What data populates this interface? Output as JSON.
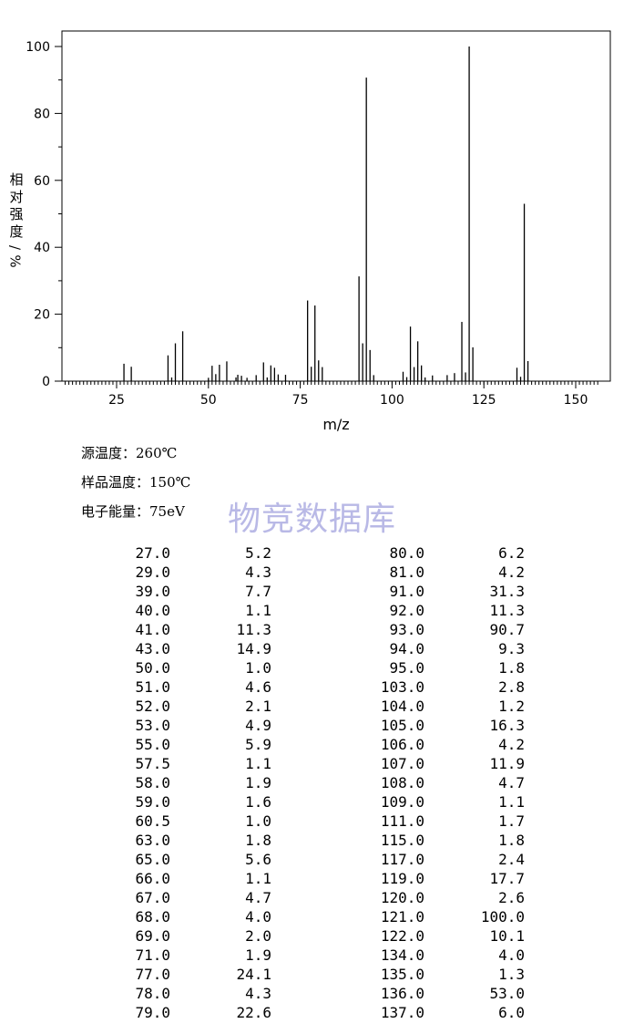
{
  "chart_data": {
    "type": "bar",
    "xlabel": "m/z",
    "ylabel": "相对强度/%",
    "xlim": [
      10,
      158
    ],
    "ylim": [
      0,
      105
    ],
    "x_ticks": [
      25,
      50,
      75,
      100,
      125,
      150
    ],
    "y_ticks": [
      0,
      20,
      40,
      60,
      80,
      100
    ],
    "grid": false,
    "peaks": [
      {
        "mz": 27.0,
        "intensity": 5.2
      },
      {
        "mz": 29.0,
        "intensity": 4.3
      },
      {
        "mz": 39.0,
        "intensity": 7.7
      },
      {
        "mz": 40.0,
        "intensity": 1.1
      },
      {
        "mz": 41.0,
        "intensity": 11.3
      },
      {
        "mz": 43.0,
        "intensity": 14.9
      },
      {
        "mz": 50.0,
        "intensity": 1.0
      },
      {
        "mz": 51.0,
        "intensity": 4.6
      },
      {
        "mz": 52.0,
        "intensity": 2.1
      },
      {
        "mz": 53.0,
        "intensity": 4.9
      },
      {
        "mz": 55.0,
        "intensity": 5.9
      },
      {
        "mz": 57.5,
        "intensity": 1.1
      },
      {
        "mz": 58.0,
        "intensity": 1.9
      },
      {
        "mz": 59.0,
        "intensity": 1.6
      },
      {
        "mz": 60.5,
        "intensity": 1.0
      },
      {
        "mz": 63.0,
        "intensity": 1.8
      },
      {
        "mz": 65.0,
        "intensity": 5.6
      },
      {
        "mz": 66.0,
        "intensity": 1.1
      },
      {
        "mz": 67.0,
        "intensity": 4.7
      },
      {
        "mz": 68.0,
        "intensity": 4.0
      },
      {
        "mz": 69.0,
        "intensity": 2.0
      },
      {
        "mz": 71.0,
        "intensity": 1.9
      },
      {
        "mz": 77.0,
        "intensity": 24.1
      },
      {
        "mz": 78.0,
        "intensity": 4.3
      },
      {
        "mz": 79.0,
        "intensity": 22.6
      },
      {
        "mz": 80.0,
        "intensity": 6.2
      },
      {
        "mz": 81.0,
        "intensity": 4.2
      },
      {
        "mz": 91.0,
        "intensity": 31.3
      },
      {
        "mz": 92.0,
        "intensity": 11.3
      },
      {
        "mz": 93.0,
        "intensity": 90.7
      },
      {
        "mz": 94.0,
        "intensity": 9.3
      },
      {
        "mz": 95.0,
        "intensity": 1.8
      },
      {
        "mz": 103.0,
        "intensity": 2.8
      },
      {
        "mz": 104.0,
        "intensity": 1.2
      },
      {
        "mz": 105.0,
        "intensity": 16.3
      },
      {
        "mz": 106.0,
        "intensity": 4.2
      },
      {
        "mz": 107.0,
        "intensity": 11.9
      },
      {
        "mz": 108.0,
        "intensity": 4.7
      },
      {
        "mz": 109.0,
        "intensity": 1.1
      },
      {
        "mz": 111.0,
        "intensity": 1.7
      },
      {
        "mz": 115.0,
        "intensity": 1.8
      },
      {
        "mz": 117.0,
        "intensity": 2.4
      },
      {
        "mz": 119.0,
        "intensity": 17.7
      },
      {
        "mz": 120.0,
        "intensity": 2.6
      },
      {
        "mz": 121.0,
        "intensity": 100.0
      },
      {
        "mz": 122.0,
        "intensity": 10.1
      },
      {
        "mz": 134.0,
        "intensity": 4.0
      },
      {
        "mz": 135.0,
        "intensity": 1.3
      },
      {
        "mz": 136.0,
        "intensity": 53.0
      },
      {
        "mz": 137.0,
        "intensity": 6.0
      }
    ]
  },
  "conditions": [
    {
      "label": "源温度：",
      "value": "260℃"
    },
    {
      "label": "样品温度：",
      "value": "150℃"
    },
    {
      "label": "电子能量：",
      "value": "75eV"
    }
  ],
  "watermark": "物竞数据库",
  "table": {
    "left": [
      [
        "27.0",
        "5.2"
      ],
      [
        "29.0",
        "4.3"
      ],
      [
        "39.0",
        "7.7"
      ],
      [
        "40.0",
        "1.1"
      ],
      [
        "41.0",
        "11.3"
      ],
      [
        "43.0",
        "14.9"
      ],
      [
        "50.0",
        "1.0"
      ],
      [
        "51.0",
        "4.6"
      ],
      [
        "52.0",
        "2.1"
      ],
      [
        "53.0",
        "4.9"
      ],
      [
        "55.0",
        "5.9"
      ],
      [
        "57.5",
        "1.1"
      ],
      [
        "58.0",
        "1.9"
      ],
      [
        "59.0",
        "1.6"
      ],
      [
        "60.5",
        "1.0"
      ],
      [
        "63.0",
        "1.8"
      ],
      [
        "65.0",
        "5.6"
      ],
      [
        "66.0",
        "1.1"
      ],
      [
        "67.0",
        "4.7"
      ],
      [
        "68.0",
        "4.0"
      ],
      [
        "69.0",
        "2.0"
      ],
      [
        "71.0",
        "1.9"
      ],
      [
        "77.0",
        "24.1"
      ],
      [
        "78.0",
        "4.3"
      ],
      [
        "79.0",
        "22.6"
      ]
    ],
    "right": [
      [
        "80.0",
        "6.2"
      ],
      [
        "81.0",
        "4.2"
      ],
      [
        "91.0",
        "31.3"
      ],
      [
        "92.0",
        "11.3"
      ],
      [
        "93.0",
        "90.7"
      ],
      [
        "94.0",
        "9.3"
      ],
      [
        "95.0",
        "1.8"
      ],
      [
        "103.0",
        "2.8"
      ],
      [
        "104.0",
        "1.2"
      ],
      [
        "105.0",
        "16.3"
      ],
      [
        "106.0",
        "4.2"
      ],
      [
        "107.0",
        "11.9"
      ],
      [
        "108.0",
        "4.7"
      ],
      [
        "109.0",
        "1.1"
      ],
      [
        "111.0",
        "1.7"
      ],
      [
        "115.0",
        "1.8"
      ],
      [
        "117.0",
        "2.4"
      ],
      [
        "119.0",
        "17.7"
      ],
      [
        "120.0",
        "2.6"
      ],
      [
        "121.0",
        "100.0"
      ],
      [
        "122.0",
        "10.1"
      ],
      [
        "134.0",
        "4.0"
      ],
      [
        "135.0",
        "1.3"
      ],
      [
        "136.0",
        "53.0"
      ],
      [
        "137.0",
        "6.0"
      ]
    ]
  }
}
